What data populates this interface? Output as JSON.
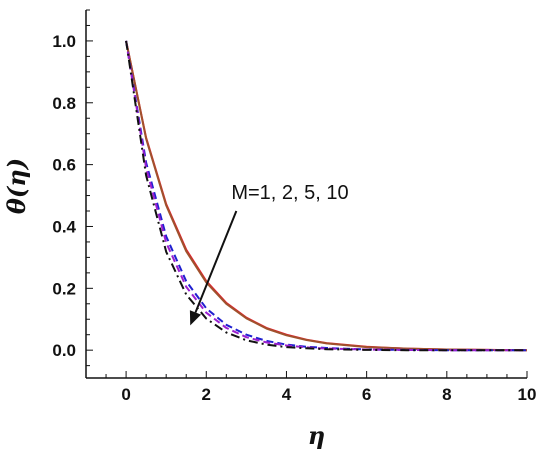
{
  "chart_data": {
    "type": "line",
    "title": "",
    "xlabel": "η",
    "ylabel": "θ(η)",
    "xlim": [
      -1,
      10
    ],
    "ylim": [
      -0.09,
      1.1
    ],
    "xticks": [
      0,
      2,
      4,
      6,
      8,
      10
    ],
    "yticks": [
      0.0,
      0.2,
      0.4,
      0.6,
      0.8,
      1.0
    ],
    "xtick_labels": [
      "0",
      "2",
      "4",
      "6",
      "8",
      "10"
    ],
    "ytick_labels": [
      "0.0",
      "0.2",
      "0.4",
      "0.6",
      "0.8",
      "1.0"
    ],
    "grid": false,
    "legend": "none",
    "annotation": {
      "text": "M=1, 2, 5, 10",
      "arrow_from": [
        2.75,
        0.45
      ],
      "arrow_to": [
        1.6,
        0.08
      ]
    },
    "x": [
      0,
      0.5,
      1,
      1.5,
      2,
      2.5,
      3,
      3.5,
      4,
      4.5,
      5,
      6,
      7,
      8,
      9,
      10
    ],
    "series": [
      {
        "color": "#e8192c",
        "dash": "solid",
        "values": [
          1.0,
          0.687,
          0.472,
          0.325,
          0.223,
          0.153,
          0.105,
          0.072,
          0.05,
          0.034,
          0.023,
          0.011,
          0.005,
          0.002,
          0.001,
          0.0
        ]
      },
      {
        "color": "#a0522d",
        "dash": "solid",
        "values": [
          1.0,
          0.684,
          0.468,
          0.32,
          0.219,
          0.15,
          0.103,
          0.07,
          0.048,
          0.033,
          0.022,
          0.01,
          0.005,
          0.002,
          0.001,
          0.0
        ]
      },
      {
        "color": "#2020d0",
        "dash": "dashed",
        "values": [
          1.0,
          0.607,
          0.368,
          0.223,
          0.135,
          0.082,
          0.05,
          0.03,
          0.018,
          0.011,
          0.007,
          0.002,
          0.001,
          0.0,
          0.0,
          0.0
        ]
      },
      {
        "color": "#9a1fd0",
        "dash": "dashed",
        "values": [
          1.0,
          0.59,
          0.348,
          0.205,
          0.121,
          0.072,
          0.042,
          0.025,
          0.015,
          0.009,
          0.005,
          0.002,
          0.001,
          0.0,
          0.0,
          0.0
        ]
      },
      {
        "color": "#111111",
        "dash": "dashdot",
        "values": [
          1.0,
          0.565,
          0.318,
          0.18,
          0.102,
          0.057,
          0.032,
          0.018,
          0.01,
          0.006,
          0.003,
          0.001,
          0.0,
          0.0,
          0.0,
          0.0
        ]
      }
    ]
  }
}
